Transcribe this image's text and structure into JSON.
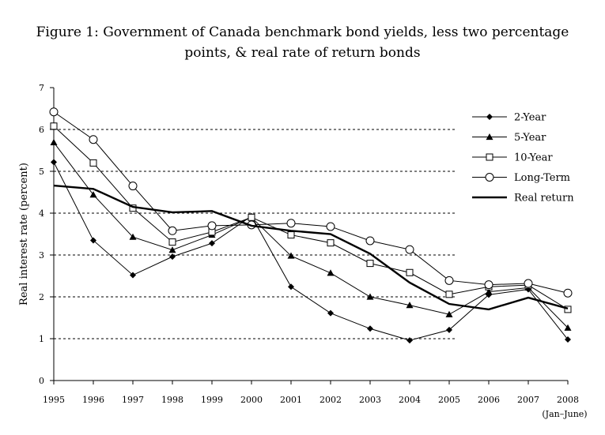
{
  "chart_data": {
    "type": "line",
    "title_line1": "Figure 1: Government of Canada benchmark bond yields, less two percentage",
    "title_line2": "points, & real rate of return bonds",
    "ylabel": "Real interest rate (percent)",
    "xlabel": "",
    "x": [
      "1995",
      "1996",
      "1997",
      "1998",
      "1999",
      "2000",
      "2001",
      "2002",
      "2003",
      "2004",
      "2005",
      "2006",
      "2007",
      "2008"
    ],
    "x_sublabel": "(Jan–June)",
    "ylim": [
      0,
      7
    ],
    "yticks": [
      0,
      1,
      2,
      3,
      4,
      5,
      6,
      7
    ],
    "grid": "horizontal dashed at 1–6",
    "legend_position": "top-right",
    "series": [
      {
        "name": "2-Year",
        "marker": "diamond",
        "values": [
          5.22,
          3.35,
          2.52,
          2.96,
          3.28,
          3.93,
          2.24,
          1.61,
          1.24,
          0.96,
          1.21,
          2.05,
          2.18,
          0.98
        ]
      },
      {
        "name": "5-Year",
        "marker": "triangle",
        "values": [
          5.69,
          4.44,
          3.43,
          3.12,
          3.48,
          3.9,
          2.98,
          2.57,
          2.0,
          1.8,
          1.58,
          2.12,
          2.22,
          1.26
        ]
      },
      {
        "name": "10-Year",
        "marker": "square",
        "values": [
          6.08,
          5.2,
          4.12,
          3.31,
          3.55,
          3.9,
          3.48,
          3.29,
          2.8,
          2.58,
          2.06,
          2.24,
          2.28,
          1.7
        ]
      },
      {
        "name": "Long-Term",
        "marker": "circle",
        "values": [
          6.42,
          5.76,
          4.65,
          3.58,
          3.7,
          3.72,
          3.76,
          3.68,
          3.34,
          3.13,
          2.39,
          2.29,
          2.32,
          2.09
        ]
      },
      {
        "name": "Real return",
        "marker": "none",
        "line": "thick",
        "values": [
          4.66,
          4.58,
          4.15,
          4.02,
          4.05,
          3.7,
          3.58,
          3.5,
          3.03,
          2.34,
          1.83,
          1.7,
          1.98,
          1.72
        ]
      }
    ]
  }
}
